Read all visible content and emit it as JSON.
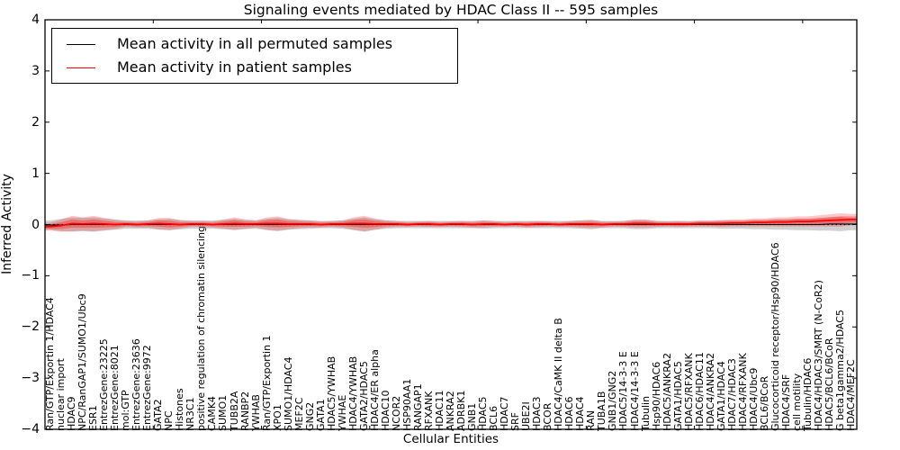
{
  "chart_data": {
    "type": "line",
    "title": "Signaling events mediated by HDAC Class II -- 595 samples",
    "xlabel": "Cellular Entities",
    "ylabel": "Inferred Activity",
    "ylim": [
      -4,
      4
    ],
    "grid": false,
    "legend_position": "upper left",
    "yticks": [
      "4",
      "3",
      "2",
      "1",
      "0",
      "−1",
      "−2",
      "−3",
      "−4"
    ],
    "legend": [
      {
        "label": "Mean activity in all permuted samples",
        "color": "#000000"
      },
      {
        "label": "Mean activity in patient samples",
        "color": "#ff0000"
      }
    ],
    "colors": {
      "patient_line": "#ff0000",
      "patient_band": "#ff0000",
      "permuted_line": "#000000",
      "permuted_band": "#999999",
      "zero_line": "#000000"
    },
    "categories": [
      "Ran/GTP/Exportin 1/HDAC4",
      "nuclear import",
      "HDAC9",
      "NPC/RanGAP1/SUMO1/Ubc9",
      "ESR1",
      "EntrezGene:23225",
      "EntrezGene:8021",
      "mol:GTP",
      "EntrezGene:23636",
      "EntrezGene:9972",
      "GATA2",
      "NPC",
      "Histones",
      "NR3C1",
      "positive regulation of chromatin silencing",
      "CAMK4",
      "SUMO1",
      "TUBB2A",
      "RANBP2",
      "YWHAB",
      "Ran/GTP/Exportin 1",
      "XPO1",
      "SUMO1/HDAC4",
      "MEF2C",
      "GNG2",
      "GATA1",
      "HDAC5/YWHAB",
      "YWHAE",
      "HDAC4/YWHAB",
      "GATA2/HDAC5",
      "HDAC4/ER alpha",
      "HDAC10",
      "NCOR2",
      "HSP90AA1",
      "RANGAP1",
      "RFXANK",
      "HDAC11",
      "ANKRA2",
      "ADRBK1",
      "GNB1",
      "HDAC5",
      "BCL6",
      "HDAC7",
      "SRF",
      "UBE2I",
      "HDAC3",
      "BCOR",
      "HDAC4/CaMK II delta B",
      "HDAC6",
      "HDAC4",
      "RAN",
      "TUBA1B",
      "GNB1/GNG2",
      "HDAC5/14-3-3 E",
      "HDAC4/14-3-3 E",
      "Tubulin",
      "Hsp90/HDAC6",
      "HDAC5/ANKRA2",
      "GATA1/HDAC5",
      "HDAC5/RFXANK",
      "HDAC6/HDAC11",
      "HDAC4/ANKRA2",
      "GATA1/HDAC4",
      "HDAC7/HDAC3",
      "HDAC4/RFXANK",
      "HDAC4/Ubc9",
      "BCL6/BCoR",
      "Glucocorticoid receptor/Hsp90/HDAC6",
      "HDAC4/SRF",
      "cell motility",
      "Tubulin/HDAC6",
      "HDAC4/HDAC3/SMRT (N-CoR2)",
      "HDAC5/BCL6/BCoR",
      "G beta1gamma2/HDAC5",
      "HDAC4/MEF2C"
    ],
    "series": [
      {
        "name": "Mean activity in all permuted samples",
        "values": [
          -0.01,
          -0.01,
          0.0,
          0.0,
          0.0,
          0.0,
          0.0,
          0.0,
          0.0,
          0.0,
          0.0,
          0.0,
          0.0,
          0.0,
          0.0,
          0.0,
          0.0,
          0.0,
          0.0,
          0.0,
          0.0,
          0.0,
          0.0,
          0.0,
          0.0,
          0.0,
          0.0,
          0.0,
          0.0,
          0.0,
          0.0,
          0.0,
          0.0,
          0.0,
          0.0,
          0.0,
          0.0,
          0.0,
          0.0,
          0.0,
          0.0,
          0.0,
          0.0,
          0.0,
          0.0,
          0.0,
          0.0,
          0.0,
          0.0,
          0.0,
          0.0,
          0.0,
          0.0,
          0.0,
          0.0,
          0.0,
          0.0,
          0.0,
          0.0,
          0.0,
          0.0,
          0.0,
          0.0,
          0.0,
          0.0,
          0.0,
          0.0,
          0.0,
          0.0,
          0.0,
          0.0,
          0.0,
          0.01,
          0.01,
          0.01
        ]
      },
      {
        "name": "Mean activity in patient samples",
        "values": [
          -0.04,
          -0.02,
          0.02,
          0.01,
          0.02,
          0.01,
          0.0,
          0.01,
          0.0,
          0.01,
          0.02,
          0.01,
          0.0,
          0.01,
          0.01,
          0.0,
          0.01,
          0.02,
          0.01,
          0.01,
          0.02,
          0.02,
          0.01,
          0.01,
          0.01,
          0.0,
          0.01,
          0.01,
          0.02,
          0.02,
          0.01,
          0.01,
          0.01,
          0.0,
          0.01,
          0.01,
          0.0,
          0.01,
          0.01,
          0.0,
          0.01,
          0.01,
          0.0,
          0.01,
          0.0,
          0.01,
          0.01,
          0.0,
          0.01,
          0.01,
          0.01,
          0.0,
          0.01,
          0.01,
          0.02,
          0.02,
          0.01,
          0.01,
          0.01,
          0.01,
          0.02,
          0.02,
          0.02,
          0.03,
          0.03,
          0.04,
          0.04,
          0.05,
          0.05,
          0.06,
          0.06,
          0.07,
          0.08,
          0.09,
          0.1
        ]
      },
      {
        "name": "std of permuted samples (band half-width)",
        "values": [
          0.09,
          0.12,
          0.14,
          0.13,
          0.14,
          0.12,
          0.1,
          0.08,
          0.08,
          0.08,
          0.1,
          0.11,
          0.09,
          0.08,
          0.08,
          0.08,
          0.09,
          0.11,
          0.09,
          0.08,
          0.11,
          0.13,
          0.1,
          0.09,
          0.08,
          0.07,
          0.07,
          0.08,
          0.11,
          0.14,
          0.1,
          0.08,
          0.07,
          0.07,
          0.07,
          0.07,
          0.07,
          0.07,
          0.07,
          0.07,
          0.08,
          0.07,
          0.07,
          0.07,
          0.07,
          0.07,
          0.07,
          0.07,
          0.07,
          0.08,
          0.09,
          0.07,
          0.07,
          0.07,
          0.09,
          0.09,
          0.07,
          0.07,
          0.07,
          0.07,
          0.07,
          0.07,
          0.08,
          0.08,
          0.08,
          0.09,
          0.09,
          0.1,
          0.1,
          0.11,
          0.11,
          0.12,
          0.13,
          0.14,
          0.12
        ]
      },
      {
        "name": "std of patient samples (band half-width)",
        "values": [
          0.08,
          0.12,
          0.15,
          0.13,
          0.15,
          0.12,
          0.09,
          0.06,
          0.06,
          0.07,
          0.11,
          0.12,
          0.08,
          0.06,
          0.06,
          0.06,
          0.09,
          0.12,
          0.09,
          0.07,
          0.12,
          0.14,
          0.1,
          0.08,
          0.07,
          0.06,
          0.06,
          0.07,
          0.12,
          0.15,
          0.11,
          0.07,
          0.06,
          0.05,
          0.05,
          0.06,
          0.05,
          0.05,
          0.06,
          0.06,
          0.07,
          0.06,
          0.05,
          0.05,
          0.06,
          0.06,
          0.05,
          0.05,
          0.06,
          0.07,
          0.08,
          0.06,
          0.05,
          0.06,
          0.08,
          0.08,
          0.06,
          0.05,
          0.06,
          0.05,
          0.06,
          0.06,
          0.07,
          0.07,
          0.07,
          0.08,
          0.08,
          0.09,
          0.09,
          0.1,
          0.1,
          0.11,
          0.12,
          0.13,
          0.11
        ]
      }
    ]
  }
}
